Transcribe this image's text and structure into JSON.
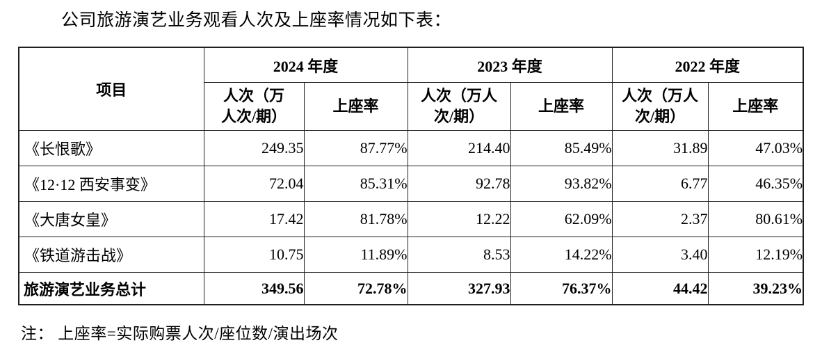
{
  "title": "公司旅游演艺业务观看人次及上座率情况如下表：",
  "note": "注： 上座率=实际购票人次/座位数/演出场次",
  "table": {
    "item_header": "项目",
    "year_groups": [
      {
        "year": "2024 年度",
        "visitors_header": "人次（万\n人次/期）",
        "occupancy_header": "上座率"
      },
      {
        "year": "2023 年度",
        "visitors_header": "人次（万人\n次/期）",
        "occupancy_header": "上座率"
      },
      {
        "year": "2022 年度",
        "visitors_header": "人次（万人\n次/期）",
        "occupancy_header": "上座率"
      }
    ],
    "rows": [
      {
        "label": "《长恨歌》",
        "values": [
          "249.35",
          "87.77%",
          "214.40",
          "85.49%",
          "31.89",
          "47.03%"
        ]
      },
      {
        "label": "《12·12 西安事变》",
        "values": [
          "72.04",
          "85.31%",
          "92.78",
          "93.82%",
          "6.77",
          "46.35%"
        ]
      },
      {
        "label": "《大唐女皇》",
        "values": [
          "17.42",
          "81.78%",
          "12.22",
          "62.09%",
          "2.37",
          "80.61%"
        ]
      },
      {
        "label": "《铁道游击战》",
        "values": [
          "10.75",
          "11.89%",
          "8.53",
          "14.22%",
          "3.40",
          "12.19%"
        ]
      }
    ],
    "total": {
      "label": "旅游演艺业务总计",
      "values": [
        "349.56",
        "72.78%",
        "327.93",
        "76.37%",
        "44.42",
        "39.23%"
      ]
    }
  },
  "colors": {
    "background": "#ffffff",
    "text": "#000000",
    "border": "#1f1f1f"
  }
}
